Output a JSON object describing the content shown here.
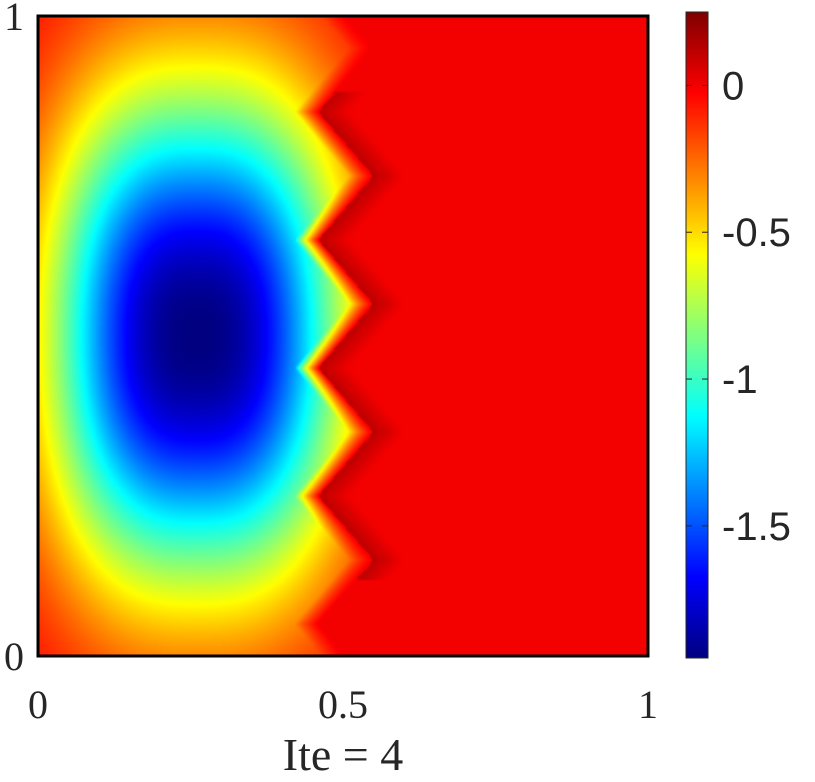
{
  "chart_data": {
    "type": "heatmap",
    "title": "",
    "xlabel": "Ite = 4",
    "ylabel": "",
    "xlim": [
      0,
      1
    ],
    "ylim": [
      0,
      1
    ],
    "x_ticks": [
      {
        "value": 0,
        "label": "0"
      },
      {
        "value": 0.5,
        "label": "0.5"
      },
      {
        "value": 1,
        "label": "1"
      }
    ],
    "y_ticks": [
      {
        "value": 0,
        "label": "0"
      },
      {
        "value": 1,
        "label": "1"
      }
    ],
    "colormap": "jet",
    "color_range": [
      -1.95,
      0.25
    ],
    "colorbar_ticks": [
      {
        "value": 0,
        "label": "0"
      },
      {
        "value": -0.5,
        "label": "-0.5"
      },
      {
        "value": -1,
        "label": "-1"
      },
      {
        "value": -1.5,
        "label": "-1.5"
      }
    ],
    "field": {
      "background_value": 0,
      "minimum": {
        "value": -1.95,
        "x": 0.26,
        "y": 0.5
      },
      "negative_region_x_extent": [
        0.05,
        0.47
      ],
      "negative_region_y_extent": [
        0.12,
        0.82
      ],
      "interface_sawtooth": {
        "valley_x": 0.46,
        "peak_x": 0.55,
        "valley_y": [
          0.84,
          0.65,
          0.45,
          0.25
        ],
        "peak_y": [
          0.75,
          0.55,
          0.35,
          0.15
        ],
        "peak_value": 0.2
      }
    },
    "grid": false,
    "colorbar": "right"
  }
}
